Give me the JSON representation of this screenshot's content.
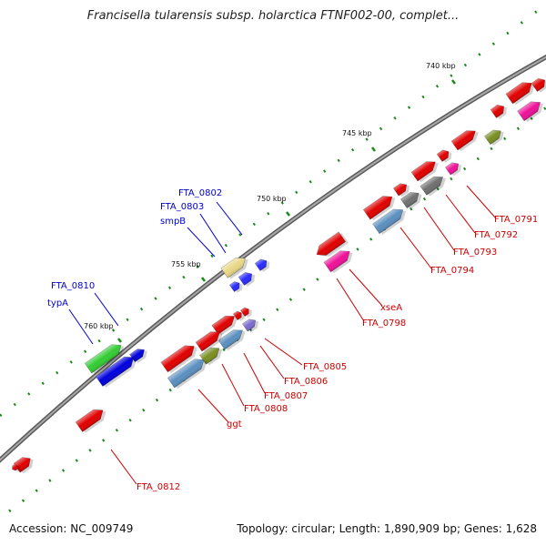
{
  "header": {
    "title": "Francisella tularensis subsp. holarctica FTNF002-00, complet..."
  },
  "footer": {
    "accession": "Accession: NC_009749",
    "summary": "Topology: circular; Length: 1,890,909 bp; Genes: 1,628"
  },
  "colors": {
    "backbone": "#8a8a8a",
    "tick": "#1a8a1a",
    "label_red": "#cc0000",
    "label_blue": "#0000cc"
  },
  "kbp_ticks": [
    "740 kbp",
    "745 kbp",
    "750 kbp",
    "755 kbp",
    "760 kbp"
  ],
  "gene_labels_red": [
    "FTA_0791",
    "FTA_0792",
    "FTA_0793",
    "FTA_0794",
    "xseA",
    "FTA_0798",
    "FTA_0805",
    "FTA_0806",
    "FTA_0807",
    "FTA_0808",
    "ggt",
    "FTA_0812"
  ],
  "gene_labels_blue": [
    "FTA_0802",
    "FTA_0803",
    "smpB",
    "FTA_0810",
    "typA"
  ]
}
